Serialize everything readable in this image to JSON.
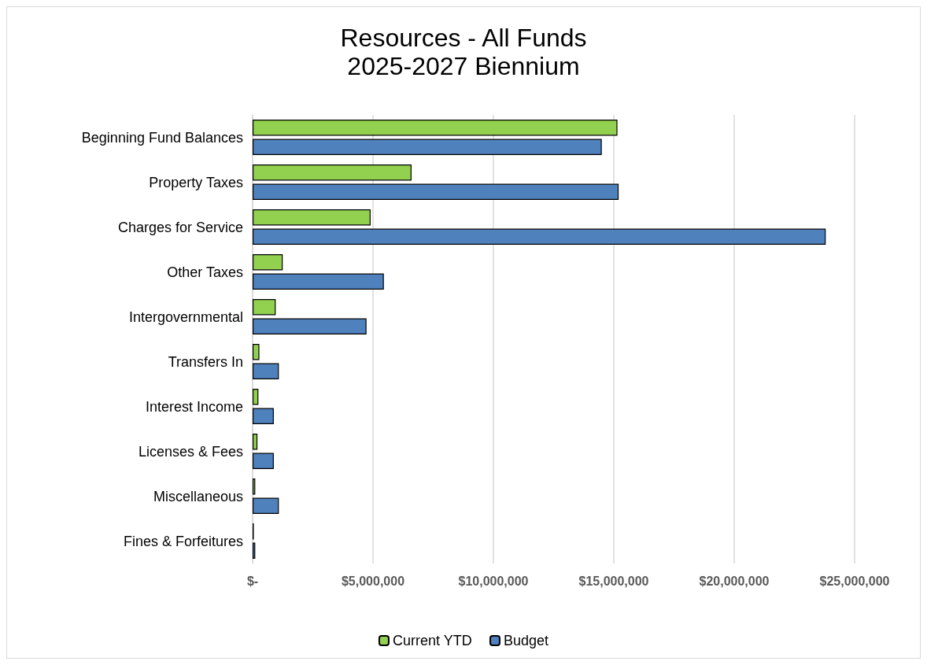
{
  "chart_data": {
    "type": "bar",
    "orientation": "horizontal",
    "title": "Resources - All Funds",
    "subtitle": "2025-2027 Biennium",
    "categories": [
      "Beginning Fund Balances",
      "Property Taxes",
      "Charges for Service",
      "Other Taxes",
      "Intergovernmental",
      "Transfers In",
      "Interest Income",
      "Licenses & Fees",
      "Miscellaneous",
      "Fines & Forfeitures"
    ],
    "series": [
      {
        "name": "Current YTD",
        "color": "#92d050",
        "values": [
          15150000,
          6600000,
          4900000,
          1250000,
          960000,
          280000,
          240000,
          200000,
          110000,
          50000
        ]
      },
      {
        "name": "Budget",
        "color": "#4f81bd",
        "values": [
          14500000,
          15200000,
          23800000,
          5450000,
          4730000,
          1090000,
          880000,
          880000,
          1090000,
          110000
        ]
      }
    ],
    "xlim": [
      0,
      25000000
    ],
    "xticks": [
      {
        "value": 0,
        "label": "$-"
      },
      {
        "value": 5000000,
        "label": "$5,000,000"
      },
      {
        "value": 10000000,
        "label": "$10,000,000"
      },
      {
        "value": 15000000,
        "label": "$15,000,000"
      },
      {
        "value": 20000000,
        "label": "$20,000,000"
      },
      {
        "value": 25000000,
        "label": "$25,000,000"
      }
    ],
    "grid": "x",
    "legend": "bottom"
  }
}
